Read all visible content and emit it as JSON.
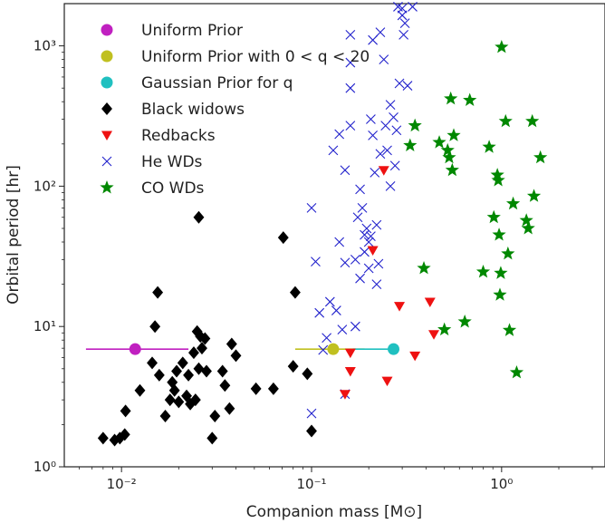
{
  "chart_data": {
    "type": "scatter",
    "title": "",
    "xlabel": "Companion mass [M⊙]",
    "ylabel": "Orbital period [hr]",
    "xscale": "log",
    "yscale": "log",
    "xlim": [
      0.005,
      3.5
    ],
    "ylim": [
      1,
      2000
    ],
    "x_ticks": [
      {
        "value": 0.01,
        "label": "10⁻²"
      },
      {
        "value": 0.1,
        "label": "10⁻¹"
      },
      {
        "value": 1,
        "label": "10⁰"
      }
    ],
    "y_ticks": [
      {
        "value": 1,
        "label": "10⁰"
      },
      {
        "value": 10,
        "label": "10¹"
      },
      {
        "value": 100,
        "label": "10²"
      },
      {
        "value": 1000,
        "label": "10³"
      }
    ],
    "grid": false,
    "legend_position": "top-left",
    "series": [
      {
        "name": "Uniform Prior",
        "marker": "circle",
        "color": "#c020c0",
        "points": [
          [
            0.0118,
            6.9
          ]
        ],
        "errorbars": [
          {
            "xmin": 0.0065,
            "xmax": 0.0225,
            "y": 6.9
          }
        ]
      },
      {
        "name": "Uniform Prior with 0 < q < 20",
        "marker": "circle",
        "color": "#c0c020",
        "points": [
          [
            0.13,
            6.9
          ]
        ],
        "errorbars": [
          {
            "xmin": 0.082,
            "xmax": 0.19,
            "y": 6.9
          }
        ]
      },
      {
        "name": "Gaussian Prior for q",
        "marker": "circle",
        "color": "#20c0c0",
        "points": [
          [
            0.27,
            6.9
          ]
        ],
        "errorbars": [
          {
            "xmin": 0.165,
            "xmax": 0.27,
            "y": 6.9
          }
        ]
      },
      {
        "name": "Black widows",
        "marker": "diamond",
        "color": "#000000",
        "points": [
          [
            0.008,
            1.6
          ],
          [
            0.0092,
            1.55
          ],
          [
            0.0098,
            1.6
          ],
          [
            0.0104,
            1.7
          ],
          [
            0.0105,
            2.5
          ],
          [
            0.0125,
            3.5
          ],
          [
            0.0145,
            5.5
          ],
          [
            0.015,
            10
          ],
          [
            0.0155,
            17.5
          ],
          [
            0.0158,
            4.5
          ],
          [
            0.017,
            2.3
          ],
          [
            0.018,
            3.0
          ],
          [
            0.0185,
            4.0
          ],
          [
            0.019,
            3.5
          ],
          [
            0.0195,
            4.8
          ],
          [
            0.02,
            2.9
          ],
          [
            0.021,
            5.5
          ],
          [
            0.022,
            3.2
          ],
          [
            0.0225,
            4.5
          ],
          [
            0.023,
            2.8
          ],
          [
            0.024,
            6.5
          ],
          [
            0.0245,
            3.0
          ],
          [
            0.025,
            9.2
          ],
          [
            0.0255,
            5.0
          ],
          [
            0.026,
            8.5
          ],
          [
            0.0265,
            7.0
          ],
          [
            0.0275,
            8.2
          ],
          [
            0.028,
            4.8
          ],
          [
            0.03,
            1.6
          ],
          [
            0.031,
            2.3
          ],
          [
            0.034,
            4.8
          ],
          [
            0.035,
            3.8
          ],
          [
            0.037,
            2.6
          ],
          [
            0.038,
            7.5
          ],
          [
            0.04,
            6.2
          ],
          [
            0.051,
            3.6
          ],
          [
            0.063,
            3.6
          ],
          [
            0.071,
            43
          ],
          [
            0.082,
            17.5
          ],
          [
            0.08,
            5.2
          ],
          [
            0.095,
            4.6
          ],
          [
            0.1,
            1.8
          ],
          [
            0.0255,
            60
          ]
        ]
      },
      {
        "name": "Redbacks",
        "marker": "triangle-down",
        "color": "#ee1111",
        "points": [
          [
            0.15,
            3.3
          ],
          [
            0.16,
            4.8
          ],
          [
            0.16,
            6.5
          ],
          [
            0.21,
            35
          ],
          [
            0.24,
            130
          ],
          [
            0.25,
            4.1
          ],
          [
            0.29,
            14
          ],
          [
            0.35,
            6.2
          ],
          [
            0.42,
            15
          ],
          [
            0.44,
            8.8
          ]
        ]
      },
      {
        "name": "He WDs",
        "marker": "x",
        "color": "#2222cc",
        "points": [
          [
            0.1,
            2.4
          ],
          [
            0.1,
            70
          ],
          [
            0.105,
            29
          ],
          [
            0.11,
            12.5
          ],
          [
            0.115,
            6.8
          ],
          [
            0.12,
            8.3
          ],
          [
            0.125,
            15
          ],
          [
            0.13,
            180
          ],
          [
            0.135,
            13
          ],
          [
            0.14,
            40
          ],
          [
            0.145,
            9.5
          ],
          [
            0.15,
            3.3
          ],
          [
            0.14,
            235
          ],
          [
            0.15,
            130
          ],
          [
            0.15,
            28.5
          ],
          [
            0.16,
            1200
          ],
          [
            0.16,
            760
          ],
          [
            0.16,
            500
          ],
          [
            0.16,
            270
          ],
          [
            0.17,
            10
          ],
          [
            0.17,
            30
          ],
          [
            0.175,
            60
          ],
          [
            0.18,
            22
          ],
          [
            0.18,
            95
          ],
          [
            0.185,
            70
          ],
          [
            0.19,
            45
          ],
          [
            0.19,
            34
          ],
          [
            0.195,
            50
          ],
          [
            0.2,
            40
          ],
          [
            0.2,
            26
          ],
          [
            0.205,
            300
          ],
          [
            0.205,
            44
          ],
          [
            0.21,
            1100
          ],
          [
            0.21,
            230
          ],
          [
            0.215,
            125
          ],
          [
            0.22,
            20
          ],
          [
            0.22,
            53
          ],
          [
            0.225,
            28
          ],
          [
            0.23,
            1250
          ],
          [
            0.23,
            170
          ],
          [
            0.24,
            800
          ],
          [
            0.245,
            270
          ],
          [
            0.25,
            180
          ],
          [
            0.26,
            380
          ],
          [
            0.26,
            100
          ],
          [
            0.27,
            310
          ],
          [
            0.275,
            140
          ],
          [
            0.28,
            250
          ],
          [
            0.285,
            1900
          ],
          [
            0.29,
            540
          ],
          [
            0.3,
            1850
          ],
          [
            0.305,
            1200
          ],
          [
            0.31,
            1450
          ],
          [
            0.32,
            520
          ],
          [
            0.34,
            1900
          ],
          [
            0.3,
            1650
          ]
        ]
      },
      {
        "name": "CO WDs",
        "marker": "star",
        "color": "#008800",
        "points": [
          [
            0.33,
            195
          ],
          [
            0.35,
            270
          ],
          [
            0.39,
            26
          ],
          [
            0.47,
            205
          ],
          [
            0.5,
            9.5
          ],
          [
            0.52,
            180
          ],
          [
            0.53,
            160
          ],
          [
            0.54,
            420
          ],
          [
            0.55,
            130
          ],
          [
            0.56,
            230
          ],
          [
            0.64,
            10.8
          ],
          [
            0.68,
            410
          ],
          [
            0.8,
            24.5
          ],
          [
            0.86,
            190
          ],
          [
            0.91,
            60
          ],
          [
            0.95,
            120
          ],
          [
            0.96,
            110
          ],
          [
            0.97,
            45
          ],
          [
            0.98,
            16.8
          ],
          [
            0.99,
            24
          ],
          [
            1.0,
            980
          ],
          [
            1.05,
            290
          ],
          [
            1.08,
            33
          ],
          [
            1.1,
            9.4
          ],
          [
            1.15,
            75
          ],
          [
            1.2,
            4.7
          ],
          [
            1.35,
            57
          ],
          [
            1.38,
            50
          ],
          [
            1.45,
            290
          ],
          [
            1.48,
            85
          ],
          [
            1.6,
            160
          ]
        ]
      }
    ]
  }
}
